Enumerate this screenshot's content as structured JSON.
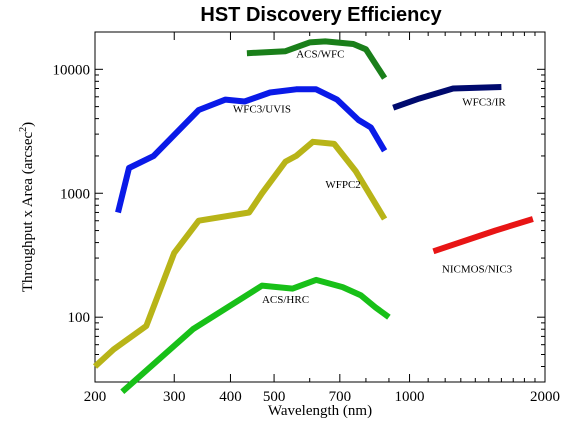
{
  "chart_data": {
    "type": "line",
    "title": "HST Discovery Efficiency",
    "xlabel": "Wavelength (nm)",
    "ylabel": "Throughput x Area (arcsec",
    "ylabel_superscript": "2",
    "ylabel_suffix": ")",
    "x_scale": "log",
    "y_scale": "log",
    "xlim": [
      200,
      2000
    ],
    "ylim": [
      30,
      20000
    ],
    "x_ticks": [
      {
        "value": 200,
        "label": "200"
      },
      {
        "value": 300,
        "label": "300"
      },
      {
        "value": 400,
        "label": "400"
      },
      {
        "value": 500,
        "label": "500"
      },
      {
        "value": 700,
        "label": "700"
      },
      {
        "value": 1000,
        "label": "1000"
      },
      {
        "value": 2000,
        "label": "2000"
      }
    ],
    "y_ticks": [
      {
        "value": 100,
        "label": "100"
      },
      {
        "value": 1000,
        "label": "1000"
      },
      {
        "value": 10000,
        "label": "10000"
      }
    ],
    "grid": false,
    "legend": "none",
    "series": [
      {
        "name": "ACS/WFC",
        "color": "#1a7f1a",
        "label_at": [
          560,
          12500
        ],
        "points": [
          [
            435,
            13500
          ],
          [
            530,
            14000
          ],
          [
            600,
            16500
          ],
          [
            650,
            16800
          ],
          [
            750,
            16000
          ],
          [
            800,
            14500
          ],
          [
            880,
            8500
          ]
        ]
      },
      {
        "name": "WFC3/UVIS",
        "color": "#0a1ae8",
        "label_at": [
          405,
          4500
        ],
        "points": [
          [
            225,
            700
          ],
          [
            238,
            1600
          ],
          [
            270,
            2000
          ],
          [
            340,
            4700
          ],
          [
            390,
            5700
          ],
          [
            430,
            5500
          ],
          [
            490,
            6500
          ],
          [
            560,
            6900
          ],
          [
            620,
            6900
          ],
          [
            690,
            5700
          ],
          [
            770,
            3900
          ],
          [
            820,
            3400
          ],
          [
            880,
            2200
          ]
        ]
      },
      {
        "name": "WFC3/IR",
        "color": "#000a6e",
        "label_at": [
          1310,
          5100
        ],
        "points": [
          [
            920,
            4900
          ],
          [
            1050,
            5800
          ],
          [
            1250,
            7000
          ],
          [
            1600,
            7200
          ]
        ]
      },
      {
        "name": "WFPC2",
        "color": "#b8b418",
        "label_at": [
          650,
          1100
        ],
        "points": [
          [
            200,
            40
          ],
          [
            220,
            55
          ],
          [
            260,
            85
          ],
          [
            300,
            330
          ],
          [
            340,
            600
          ],
          [
            440,
            700
          ],
          [
            470,
            1000
          ],
          [
            530,
            1800
          ],
          [
            560,
            2000
          ],
          [
            610,
            2600
          ],
          [
            680,
            2500
          ],
          [
            760,
            1500
          ],
          [
            880,
            620
          ]
        ]
      },
      {
        "name": "NICMOS/NIC3",
        "color": "#e81515",
        "label_at": [
          1180,
          230
        ],
        "points": [
          [
            1130,
            340
          ],
          [
            1550,
            500
          ],
          [
            1880,
            620
          ]
        ]
      },
      {
        "name": "ACS/HRC",
        "color": "#18c018",
        "label_at": [
          470,
          130
        ],
        "points": [
          [
            230,
            25
          ],
          [
            330,
            80
          ],
          [
            470,
            180
          ],
          [
            550,
            170
          ],
          [
            620,
            200
          ],
          [
            710,
            175
          ],
          [
            780,
            150
          ],
          [
            840,
            120
          ],
          [
            900,
            100
          ]
        ]
      }
    ]
  }
}
